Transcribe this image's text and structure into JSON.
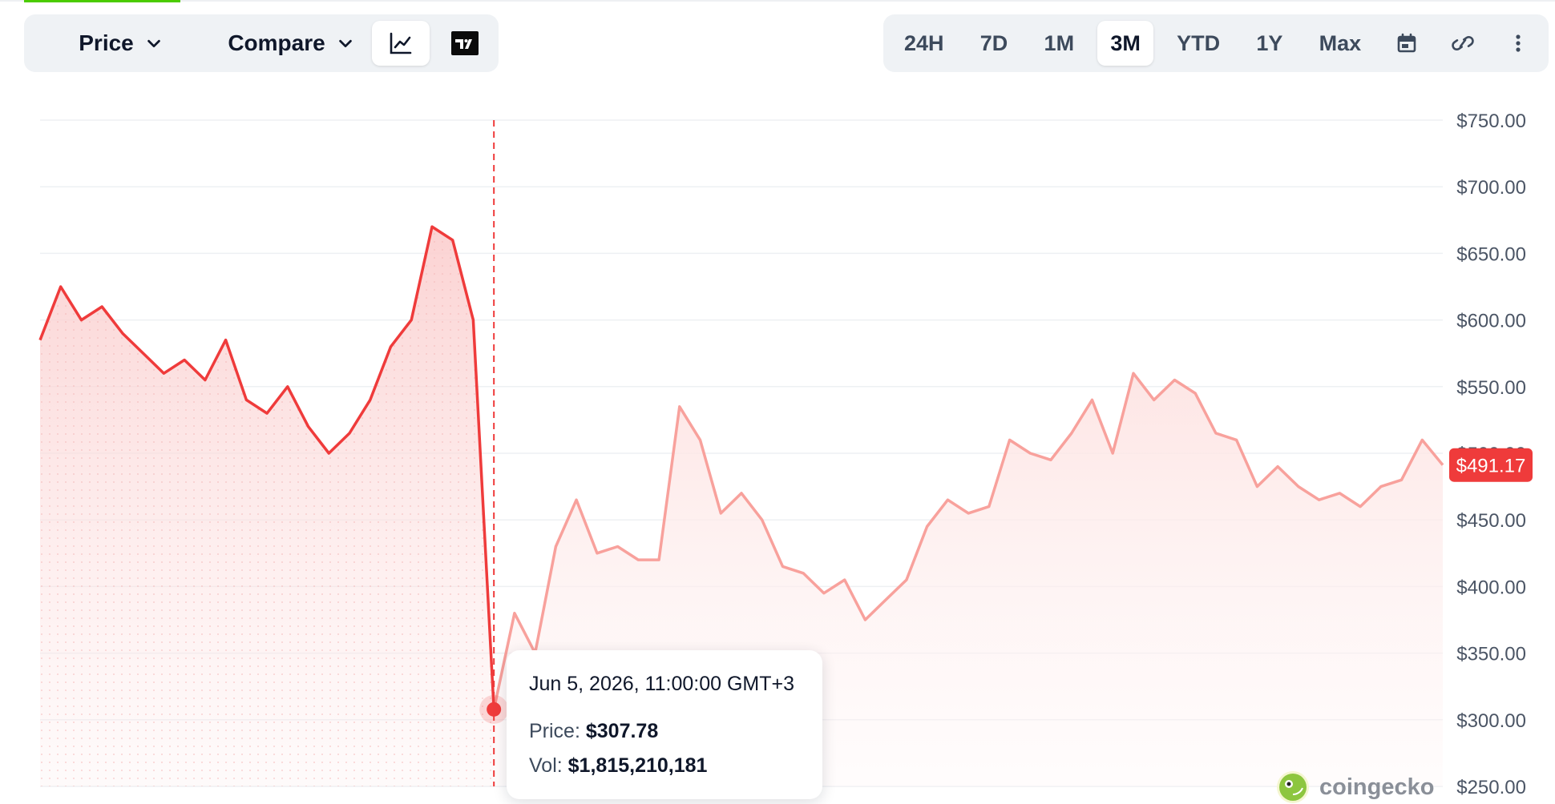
{
  "toolbar": {
    "price_label": "Price",
    "compare_label": "Compare",
    "chart_types": [
      "line-chart-icon",
      "tradingview-icon"
    ],
    "ranges": [
      "24H",
      "7D",
      "1M",
      "3M",
      "YTD",
      "1Y",
      "Max"
    ],
    "active_range": "3M",
    "icons": [
      "calendar-icon",
      "link-icon",
      "more-vertical-icon"
    ]
  },
  "tooltip": {
    "date": "Jun 5, 2026, 11:00:00 GMT+3",
    "price_label": "Price:",
    "price_value": "$307.78",
    "vol_label": "Vol:",
    "vol_value": "$1,815,210,181"
  },
  "current_price_badge": "$491.17",
  "logo_text": "coingecko",
  "colors": {
    "line": "#ef3b3b",
    "line_faded": "#f8a19c",
    "area": "#fde2e2",
    "badge": "#ef3b3b",
    "grid": "#eef0f3"
  },
  "chart_data": {
    "type": "line",
    "title": "",
    "xlabel": "",
    "ylabel": "",
    "ylim": [
      250,
      750
    ],
    "yticks": [
      750,
      700,
      650,
      600,
      550,
      500,
      450,
      400,
      350,
      300,
      250
    ],
    "ytick_labels": [
      "$750.00",
      "$700.00",
      "$650.00",
      "$600.00",
      "$550.00",
      "$500.00",
      "$450.00",
      "$400.00",
      "$350.00",
      "$300.00",
      "$250.00"
    ],
    "hover_index": 22,
    "series": [
      {
        "values": [
          585,
          625,
          600,
          610,
          590,
          575,
          560,
          570,
          555,
          585,
          540,
          530,
          550,
          520,
          500,
          515,
          540,
          580,
          600,
          670,
          660,
          600,
          307.78,
          380,
          350,
          430,
          465,
          425,
          430,
          420,
          420,
          535,
          510,
          455,
          470,
          450,
          415,
          410,
          395,
          405,
          375,
          390,
          405,
          445,
          465,
          455,
          460,
          510,
          500,
          495,
          515,
          540,
          500,
          560,
          540,
          555,
          545,
          515,
          510,
          475,
          490,
          475,
          465,
          470,
          460,
          475,
          480,
          510,
          491.17
        ]
      }
    ]
  }
}
